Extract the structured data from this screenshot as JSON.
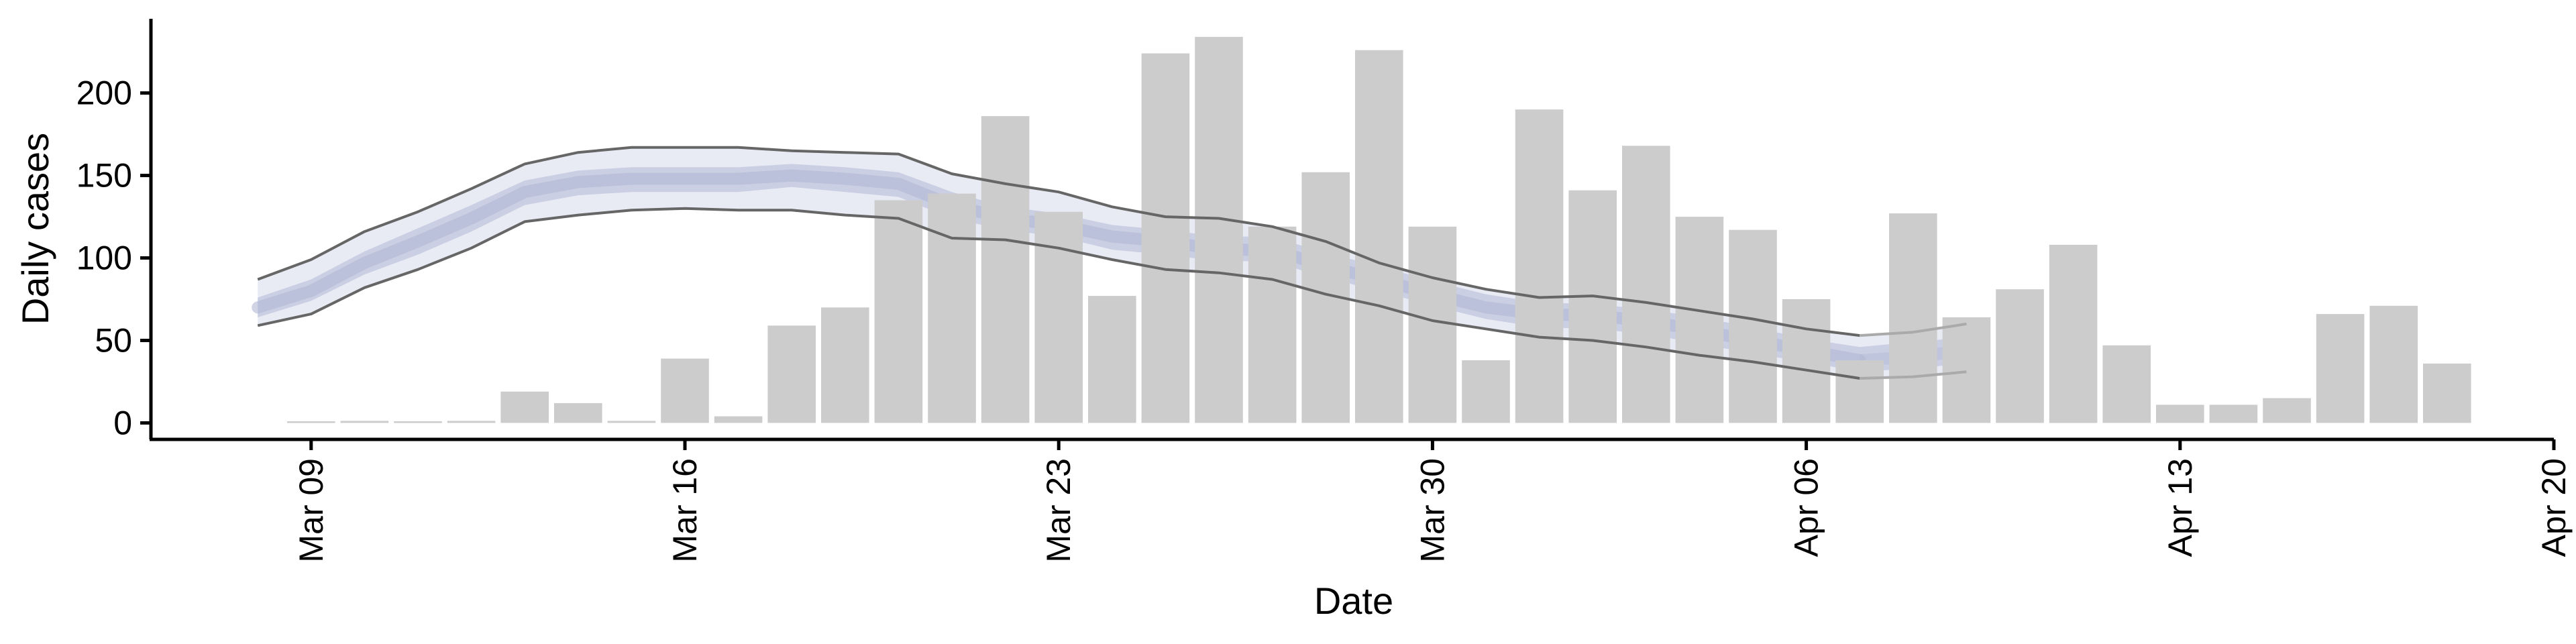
{
  "chart_data": {
    "type": "bar",
    "xlabel": "Date",
    "ylabel": "Daily cases",
    "x_axis_type": "date",
    "xlim": [
      "2020-03-06",
      "2020-04-20"
    ],
    "ylim": [
      -10,
      245
    ],
    "x_ticks": [
      {
        "date": "2020-03-09",
        "label": "Mar 09"
      },
      {
        "date": "2020-03-16",
        "label": "Mar 16"
      },
      {
        "date": "2020-03-23",
        "label": "Mar 23"
      },
      {
        "date": "2020-03-30",
        "label": "Mar 30"
      },
      {
        "date": "2020-04-06",
        "label": "Apr 06"
      },
      {
        "date": "2020-04-13",
        "label": "Apr 13"
      },
      {
        "date": "2020-04-20",
        "label": "Apr 20"
      }
    ],
    "y_ticks": [
      0,
      50,
      100,
      150,
      200
    ],
    "grid": false,
    "bars": {
      "name": "Daily cases",
      "color": "#cccccc",
      "dates": [
        "2020-03-09",
        "2020-03-10",
        "2020-03-11",
        "2020-03-12",
        "2020-03-13",
        "2020-03-14",
        "2020-03-15",
        "2020-03-16",
        "2020-03-17",
        "2020-03-18",
        "2020-03-19",
        "2020-03-20",
        "2020-03-21",
        "2020-03-22",
        "2020-03-23",
        "2020-03-24",
        "2020-03-25",
        "2020-03-26",
        "2020-03-27",
        "2020-03-28",
        "2020-03-29",
        "2020-03-30",
        "2020-03-31",
        "2020-04-01",
        "2020-04-02",
        "2020-04-03",
        "2020-04-04",
        "2020-04-05",
        "2020-04-06",
        "2020-04-07",
        "2020-04-08",
        "2020-04-09",
        "2020-04-10",
        "2020-04-11",
        "2020-04-12",
        "2020-04-13",
        "2020-04-14",
        "2020-04-15",
        "2020-04-16",
        "2020-04-17",
        "2020-04-18"
      ],
      "values": [
        1,
        0,
        1,
        0,
        19,
        12,
        0,
        39,
        4,
        59,
        70,
        135,
        139,
        186,
        128,
        77,
        224,
        234,
        119,
        152,
        226,
        119,
        38,
        190,
        141,
        168,
        125,
        117,
        75,
        38,
        127,
        64,
        81,
        108,
        47,
        11,
        11,
        15,
        66,
        71,
        36
      ]
    },
    "band": {
      "dates": [
        "2020-03-08",
        "2020-03-09",
        "2020-03-10",
        "2020-03-11",
        "2020-03-12",
        "2020-03-13",
        "2020-03-14",
        "2020-03-15",
        "2020-03-16",
        "2020-03-17",
        "2020-03-18",
        "2020-03-19",
        "2020-03-20",
        "2020-03-21",
        "2020-03-22",
        "2020-03-23",
        "2020-03-24",
        "2020-03-25",
        "2020-03-26",
        "2020-03-27",
        "2020-03-28",
        "2020-03-29",
        "2020-03-30",
        "2020-03-31",
        "2020-04-01",
        "2020-04-02",
        "2020-04-03",
        "2020-04-04",
        "2020-04-05",
        "2020-04-06",
        "2020-04-07",
        "2020-04-08",
        "2020-04-09"
      ],
      "median": [
        70,
        80,
        97,
        110,
        124,
        140,
        146,
        148,
        148,
        148,
        150,
        148,
        145,
        132,
        124,
        120,
        113,
        110,
        105,
        105,
        95,
        87,
        78,
        70,
        66,
        65,
        62,
        56,
        50,
        44,
        38,
        40,
        44
      ],
      "inner_lower": [
        64,
        74,
        90,
        102,
        116,
        132,
        138,
        140,
        140,
        140,
        143,
        140,
        137,
        124,
        117,
        113,
        105,
        102,
        98,
        98,
        88,
        80,
        71,
        63,
        58,
        57,
        54,
        48,
        42,
        37,
        31,
        33,
        36
      ],
      "inner_upper": [
        76,
        87,
        104,
        118,
        132,
        147,
        153,
        155,
        155,
        155,
        157,
        155,
        152,
        140,
        131,
        127,
        120,
        117,
        113,
        113,
        103,
        95,
        86,
        78,
        73,
        72,
        69,
        64,
        58,
        51,
        46,
        49,
        52
      ],
      "outer_lower": [
        59,
        66,
        82,
        93,
        106,
        122,
        126,
        129,
        130,
        129,
        129,
        126,
        124,
        112,
        111,
        106,
        99,
        93,
        91,
        87,
        78,
        71,
        62,
        57,
        52,
        50,
        46,
        41,
        37,
        32,
        27,
        28,
        31
      ],
      "outer_upper": [
        87,
        99,
        116,
        128,
        142,
        157,
        164,
        167,
        167,
        167,
        165,
        164,
        163,
        151,
        145,
        140,
        131,
        125,
        124,
        119,
        110,
        97,
        88,
        81,
        76,
        77,
        73,
        68,
        63,
        57,
        53,
        55,
        60
      ],
      "fade_after": "2020-04-07",
      "outer_color": "#e9ebf4",
      "inner_color": "#c8cee1",
      "median_color": "#b0b8d3",
      "outline_color": "#666666"
    }
  }
}
